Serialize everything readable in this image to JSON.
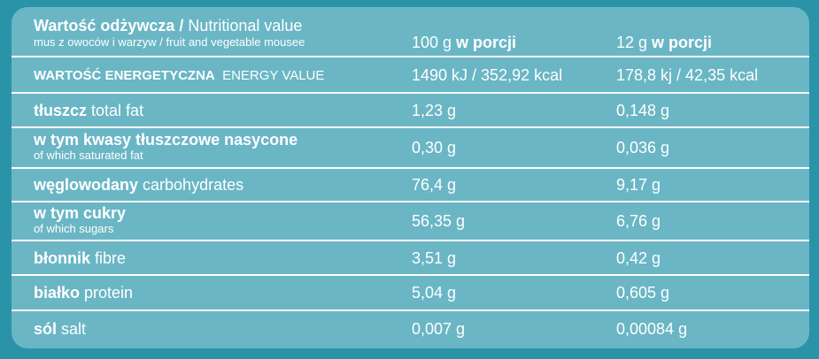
{
  "header": {
    "title_bold": "Wartość odżywcza /",
    "title_regular": " Nutritional value",
    "subtitle": "mus z owoców i warzyw / fruit and vegetable mousee",
    "col100_amount": "100 g ",
    "col100_label": "w porcji",
    "col12_amount": "12 g ",
    "col12_label": "w porcji"
  },
  "rows": [
    {
      "pl": "WARTOŚĆ ENERGETYCZNA",
      "en": "ENERGY VALUE",
      "v100": "1490 kJ / 352,92 kcal",
      "v12": "178,8 kj / 42,35 kcal"
    },
    {
      "pl": "tłuszcz",
      "en": "total fat",
      "v100": "1,23 g",
      "v12": "0,148 g"
    },
    {
      "pl": "w tym kwasy tłuszczowe nasycone",
      "en": "of which saturated fat",
      "v100": "0,30 g",
      "v12": "0,036 g"
    },
    {
      "pl": "węglowodany",
      "en": "carbohydrates",
      "v100": "76,4 g",
      "v12": "9,17 g"
    },
    {
      "pl": "w tym cukry",
      "en": "of which sugars",
      "v100": "56,35 g",
      "v12": "6,76 g"
    },
    {
      "pl": "błonnik",
      "en": "fibre",
      "v100": "3,51 g",
      "v12": "0,42 g"
    },
    {
      "pl": "białko",
      "en": "protein",
      "v100": "5,04 g",
      "v12": "0,605 g"
    },
    {
      "pl": "sól",
      "en": "salt",
      "v100": "0,007 g",
      "v12": "0,00084 g"
    }
  ]
}
